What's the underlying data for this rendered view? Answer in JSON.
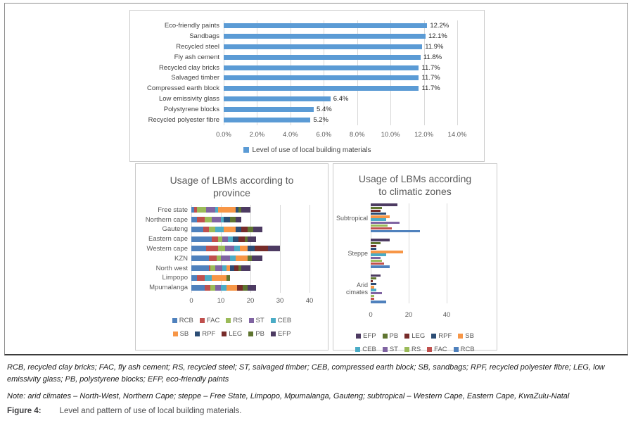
{
  "figure": {
    "caption_abbrev": "RCB, recycled clay bricks; FAC, fly ash cement; RS, recycled steel; ST, salvaged timber; CEB, compressed earth block; SB, sandbags; RPF, recycled polyester fibre; LEG, low emissivity glass; PB, polystyrene blocks; EFP, eco-friendly paints",
    "caption_note": "Note: arid climates – North-West, Northern Cape; steppe – Free State, Limpopo, Mpumalanga, Gauteng; subtropical – Western Cape, Eastern Cape, KwaZulu-Natal",
    "figure_label": "Figure 4:",
    "figure_title": "Level and pattern of use of local building materials."
  },
  "colors": {
    "level_bar": "#5B9BD5",
    "gridline": "#d9d9d9",
    "chart_text": "#595959"
  },
  "chart_data": [
    {
      "type": "bar",
      "orientation": "horizontal",
      "title": "",
      "categories": [
        "Eco-friendly paints",
        "Sandbags",
        "Recycled steel",
        "Fly ash cement",
        "Recycled clay bricks",
        "Salvaged timber",
        "Compressed earth block",
        "Low emissivity glass",
        "Polystyrene blocks",
        "Recycled polyester fibre"
      ],
      "values": [
        12.2,
        12.1,
        11.9,
        11.8,
        11.7,
        11.7,
        11.7,
        6.4,
        5.4,
        5.2
      ],
      "value_labels": [
        "12.2%",
        "12.1%",
        "11.9%",
        "11.8%",
        "11.7%",
        "11.7%",
        "11.7%",
        "6.4%",
        "5.4%",
        "5.2%"
      ],
      "x_ticks": [
        "0.0%",
        "2.0%",
        "4.0%",
        "6.0%",
        "8.0%",
        "10.0%",
        "12.0%",
        "14.0%"
      ],
      "xlim": [
        0,
        14
      ],
      "grid": true,
      "legend": [
        "Level of use of local building materials"
      ],
      "legend_position": "bottom",
      "bar_color": "#5B9BD5"
    },
    {
      "type": "bar",
      "subtype": "stacked",
      "orientation": "horizontal",
      "title": "Usage of LBMs according to province",
      "categories": [
        "Free state",
        "Northern cape",
        "Gauteng",
        "Eastern cape",
        "Western cape",
        "KZN",
        "North west",
        "Limpopo",
        "Mpumalanga"
      ],
      "series": [
        {
          "name": "RCB",
          "color": "#4F81BD",
          "values": [
            1,
            2,
            4,
            7,
            5,
            6,
            6,
            2,
            4.5
          ]
        },
        {
          "name": "FAC",
          "color": "#C0504D",
          "values": [
            1,
            2.5,
            2,
            2,
            4,
            2.5,
            0.5,
            2.5,
            2
          ]
        },
        {
          "name": "RS",
          "color": "#9BBB59",
          "values": [
            3,
            2.5,
            2,
            1.5,
            2.5,
            1.5,
            1.5,
            0,
            1.5
          ]
        },
        {
          "name": "ST",
          "color": "#8064A2",
          "values": [
            3,
            3,
            0,
            2,
            3,
            3,
            2.5,
            0,
            2
          ]
        },
        {
          "name": "CEB",
          "color": "#4BACC6",
          "values": [
            1,
            1,
            3,
            1.5,
            2,
            2,
            1.5,
            2.5,
            2
          ]
        },
        {
          "name": "SB",
          "color": "#F79646",
          "values": [
            6,
            0,
            4,
            0,
            2.5,
            4,
            1,
            5,
            3.5
          ]
        },
        {
          "name": "RPF",
          "color": "#2C4D75",
          "values": [
            1,
            2,
            2,
            2,
            2.5,
            0,
            1.5,
            0,
            0
          ]
        },
        {
          "name": "LEG",
          "color": "#772C2A",
          "values": [
            0,
            0,
            2,
            2,
            4.5,
            0,
            1.5,
            0,
            2
          ]
        },
        {
          "name": "PB",
          "color": "#5F7530",
          "values": [
            1,
            2,
            2,
            1,
            0,
            1.5,
            1,
            1,
            1.5
          ]
        },
        {
          "name": "EFP",
          "color": "#4D3B62",
          "values": [
            3,
            2,
            3,
            3,
            4,
            3.5,
            3,
            0,
            3
          ]
        }
      ],
      "x_ticks": [
        "0",
        "10",
        "20",
        "30",
        "40"
      ],
      "xlim": [
        0,
        40
      ],
      "grid": true,
      "legend_rows": [
        [
          "RCB",
          "FAC",
          "RS",
          "ST",
          "CEB"
        ],
        [
          "SB",
          "RPF",
          "LEG",
          "PB",
          "EFP"
        ]
      ],
      "legend_position": "bottom"
    },
    {
      "type": "bar",
      "subtype": "grouped",
      "orientation": "horizontal",
      "title": "Usage of LBMs according to climatic zones",
      "categories": [
        "Subtropical",
        "Steppe",
        "Arid cimates"
      ],
      "series": [
        {
          "name": "EFP",
          "color": "#4D3B62",
          "values": [
            14,
            10,
            5
          ]
        },
        {
          "name": "PB",
          "color": "#5F7530",
          "values": [
            6,
            5,
            3
          ]
        },
        {
          "name": "LEG",
          "color": "#772C2A",
          "values": [
            5,
            3,
            1
          ]
        },
        {
          "name": "RPF",
          "color": "#2C4D75",
          "values": [
            8,
            3,
            3
          ]
        },
        {
          "name": "SB",
          "color": "#F79646",
          "values": [
            10,
            17,
            2
          ]
        },
        {
          "name": "CEB",
          "color": "#4BACC6",
          "values": [
            8,
            8,
            3
          ]
        },
        {
          "name": "ST",
          "color": "#8064A2",
          "values": [
            15,
            5,
            6
          ]
        },
        {
          "name": "RS",
          "color": "#9BBB59",
          "values": [
            9,
            6,
            2
          ]
        },
        {
          "name": "FAC",
          "color": "#C0504D",
          "values": [
            11,
            7,
            2
          ]
        },
        {
          "name": "RCB",
          "color": "#4F81BD",
          "values": [
            26,
            10,
            8
          ]
        }
      ],
      "x_ticks": [
        "0",
        "20",
        "40"
      ],
      "xlim": [
        0,
        40
      ],
      "grid": true,
      "legend_rows": [
        [
          "EFP",
          "PB",
          "LEG",
          "RPF",
          "SB"
        ],
        [
          "CEB",
          "ST",
          "RS",
          "FAC",
          "RCB"
        ]
      ],
      "legend_position": "bottom"
    }
  ]
}
